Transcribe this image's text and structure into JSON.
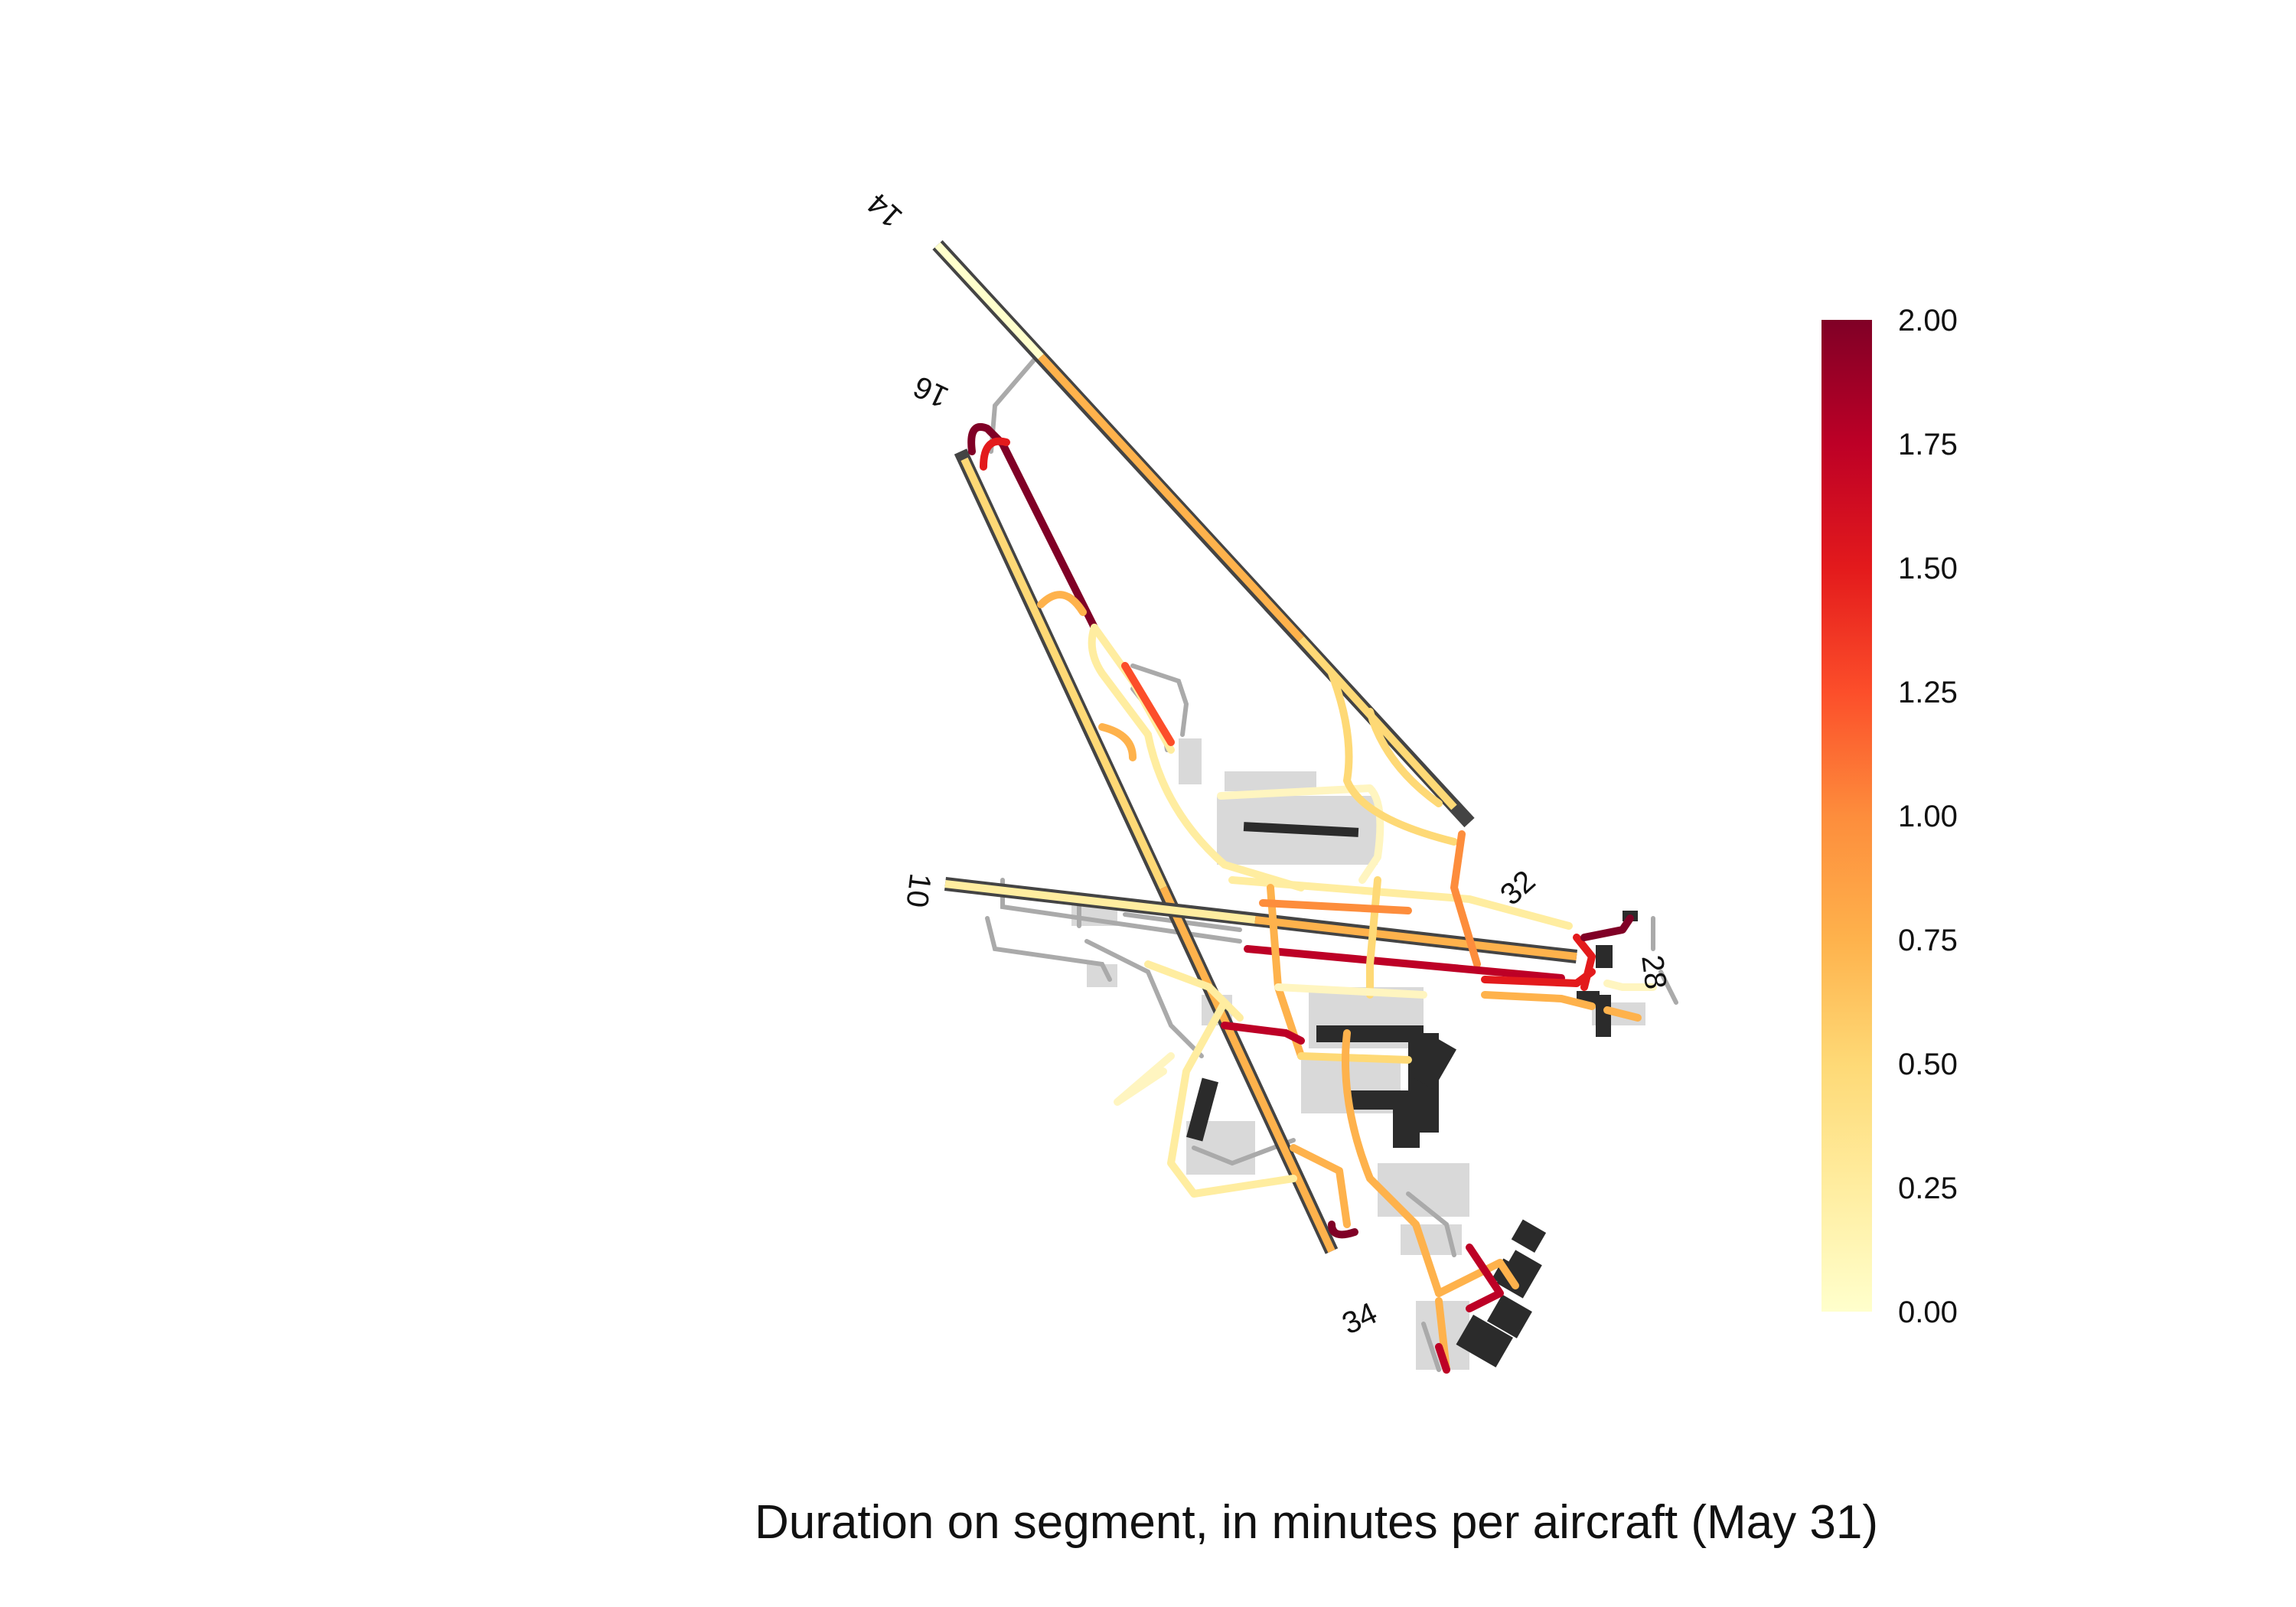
{
  "map": {
    "runway_labels": [
      "14",
      "16",
      "10",
      "32",
      "28",
      "34"
    ]
  },
  "colorbar": {
    "min": 0.0,
    "max": 2.0,
    "ticks": [
      "0.00",
      "0.25",
      "0.50",
      "0.75",
      "1.00",
      "1.25",
      "1.50",
      "1.75",
      "2.00"
    ],
    "colors": [
      "#ffffcc",
      "#ffeda0",
      "#fed976",
      "#feb24c",
      "#fd8d3c",
      "#fc4e2a",
      "#e31a1c",
      "#bd0026",
      "#800026"
    ]
  },
  "caption": "Duration on segment, in minutes per aircraft (May 31)"
}
